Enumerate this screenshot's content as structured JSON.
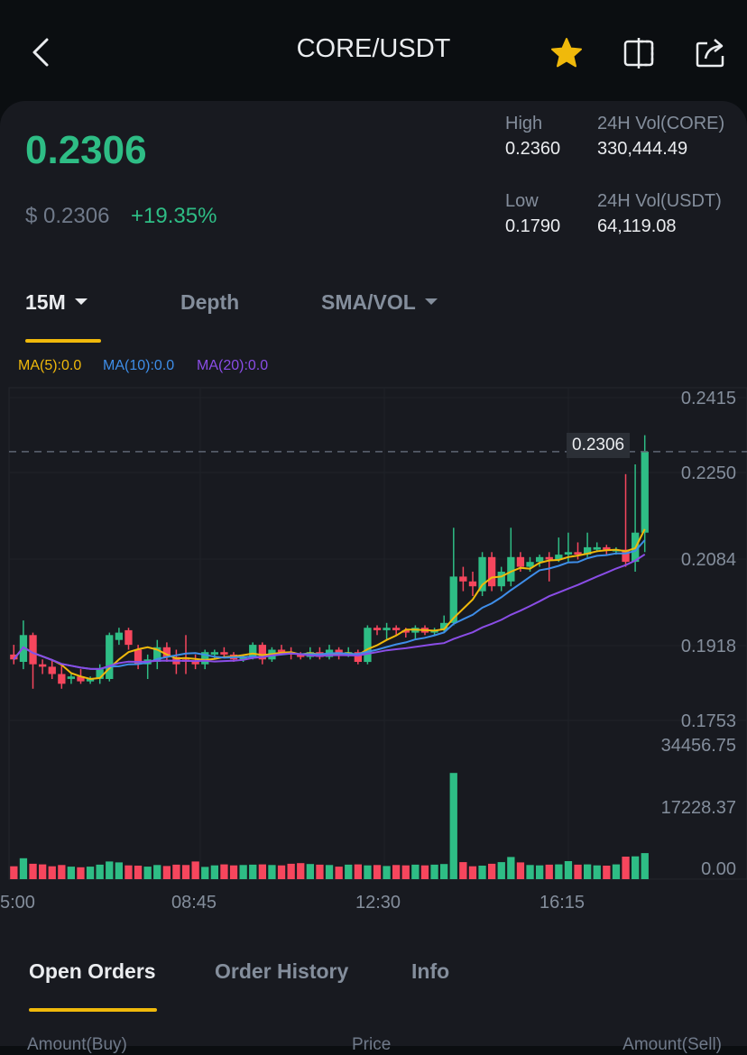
{
  "header": {
    "title": "CORE/USDT"
  },
  "ticker": {
    "last_price": "0.2306",
    "usd_price": "$ 0.2306",
    "change_pct": "+19.35%",
    "high_label": "High",
    "high_value": "0.2360",
    "low_label": "Low",
    "low_value": "0.1790",
    "vol_base_label": "24H Vol(CORE)",
    "vol_base_value": "330,444.49",
    "vol_quote_label": "24H Vol(USDT)",
    "vol_quote_value": "64,119.08"
  },
  "chart_tabs": {
    "interval": "15M",
    "depth": "Depth",
    "indicator": "SMA/VOL"
  },
  "ma_legend": {
    "ma5": "MA(5):0.0",
    "ma10": "MA(10):0.0",
    "ma20": "MA(20):0.0"
  },
  "colors": {
    "up": "#2ebd85",
    "down": "#f6465d",
    "accent": "#f0b90b",
    "ma5": "#f0b90b",
    "ma10": "#3e8ee9",
    "ma20": "#8a4de6"
  },
  "chart_data": {
    "type": "candlestick",
    "price_axis_ticks": [
      "0.2415",
      "0.2250",
      "0.2084",
      "0.1918",
      "0.1753"
    ],
    "volume_axis_ticks": [
      "34456.75",
      "17228.37",
      "0.00"
    ],
    "time_labels": [
      "5:00",
      "08:45",
      "12:30",
      "16:15"
    ],
    "last_price_marker": "0.2306",
    "ylim": [
      0.1753,
      0.2415
    ],
    "volume_ylim": [
      0,
      34456.75
    ],
    "candles": [
      {
        "o": 0.189,
        "h": 0.191,
        "l": 0.187,
        "c": 0.188
      },
      {
        "o": 0.1875,
        "h": 0.196,
        "l": 0.186,
        "c": 0.193
      },
      {
        "o": 0.193,
        "h": 0.1935,
        "l": 0.182,
        "c": 0.187
      },
      {
        "o": 0.187,
        "h": 0.188,
        "l": 0.185,
        "c": 0.1865
      },
      {
        "o": 0.1865,
        "h": 0.188,
        "l": 0.184,
        "c": 0.185
      },
      {
        "o": 0.185,
        "h": 0.187,
        "l": 0.182,
        "c": 0.183
      },
      {
        "o": 0.184,
        "h": 0.185,
        "l": 0.183,
        "c": 0.1845
      },
      {
        "o": 0.1845,
        "h": 0.186,
        "l": 0.183,
        "c": 0.1835
      },
      {
        "o": 0.1835,
        "h": 0.1845,
        "l": 0.183,
        "c": 0.184
      },
      {
        "o": 0.184,
        "h": 0.187,
        "l": 0.183,
        "c": 0.186
      },
      {
        "o": 0.184,
        "h": 0.1935,
        "l": 0.1835,
        "c": 0.193
      },
      {
        "o": 0.192,
        "h": 0.1945,
        "l": 0.191,
        "c": 0.1935
      },
      {
        "o": 0.194,
        "h": 0.1945,
        "l": 0.19,
        "c": 0.191
      },
      {
        "o": 0.19,
        "h": 0.191,
        "l": 0.186,
        "c": 0.187
      },
      {
        "o": 0.187,
        "h": 0.189,
        "l": 0.184,
        "c": 0.188
      },
      {
        "o": 0.1875,
        "h": 0.192,
        "l": 0.186,
        "c": 0.1905
      },
      {
        "o": 0.1905,
        "h": 0.1915,
        "l": 0.1875,
        "c": 0.1885
      },
      {
        "o": 0.1885,
        "h": 0.19,
        "l": 0.185,
        "c": 0.187
      },
      {
        "o": 0.188,
        "h": 0.193,
        "l": 0.185,
        "c": 0.1875
      },
      {
        "o": 0.1875,
        "h": 0.189,
        "l": 0.186,
        "c": 0.187
      },
      {
        "o": 0.187,
        "h": 0.19,
        "l": 0.186,
        "c": 0.1895
      },
      {
        "o": 0.189,
        "h": 0.19,
        "l": 0.188,
        "c": 0.1895
      },
      {
        "o": 0.1895,
        "h": 0.1905,
        "l": 0.1885,
        "c": 0.189
      },
      {
        "o": 0.189,
        "h": 0.1895,
        "l": 0.1875,
        "c": 0.188
      },
      {
        "o": 0.188,
        "h": 0.189,
        "l": 0.1875,
        "c": 0.1885
      },
      {
        "o": 0.1885,
        "h": 0.1915,
        "l": 0.188,
        "c": 0.191
      },
      {
        "o": 0.191,
        "h": 0.1915,
        "l": 0.187,
        "c": 0.188
      },
      {
        "o": 0.188,
        "h": 0.1905,
        "l": 0.1875,
        "c": 0.19
      },
      {
        "o": 0.19,
        "h": 0.191,
        "l": 0.189,
        "c": 0.1895
      },
      {
        "o": 0.1895,
        "h": 0.1905,
        "l": 0.188,
        "c": 0.189
      },
      {
        "o": 0.189,
        "h": 0.1895,
        "l": 0.188,
        "c": 0.1885
      },
      {
        "o": 0.1885,
        "h": 0.1905,
        "l": 0.188,
        "c": 0.1895
      },
      {
        "o": 0.1895,
        "h": 0.1905,
        "l": 0.188,
        "c": 0.1885
      },
      {
        "o": 0.1885,
        "h": 0.191,
        "l": 0.188,
        "c": 0.19
      },
      {
        "o": 0.19,
        "h": 0.1905,
        "l": 0.188,
        "c": 0.189
      },
      {
        "o": 0.189,
        "h": 0.1905,
        "l": 0.1885,
        "c": 0.1895
      },
      {
        "o": 0.1895,
        "h": 0.19,
        "l": 0.187,
        "c": 0.1875
      },
      {
        "o": 0.1875,
        "h": 0.195,
        "l": 0.187,
        "c": 0.1945
      },
      {
        "o": 0.1945,
        "h": 0.195,
        "l": 0.193,
        "c": 0.194
      },
      {
        "o": 0.194,
        "h": 0.1955,
        "l": 0.192,
        "c": 0.1945
      },
      {
        "o": 0.1945,
        "h": 0.195,
        "l": 0.193,
        "c": 0.194
      },
      {
        "o": 0.194,
        "h": 0.1945,
        "l": 0.1925,
        "c": 0.1935
      },
      {
        "o": 0.1935,
        "h": 0.195,
        "l": 0.192,
        "c": 0.1945
      },
      {
        "o": 0.1945,
        "h": 0.195,
        "l": 0.193,
        "c": 0.1935
      },
      {
        "o": 0.1935,
        "h": 0.1945,
        "l": 0.193,
        "c": 0.194
      },
      {
        "o": 0.194,
        "h": 0.197,
        "l": 0.1935,
        "c": 0.1955
      },
      {
        "o": 0.1955,
        "h": 0.215,
        "l": 0.195,
        "c": 0.205
      },
      {
        "o": 0.205,
        "h": 0.207,
        "l": 0.202,
        "c": 0.204
      },
      {
        "o": 0.204,
        "h": 0.206,
        "l": 0.201,
        "c": 0.203
      },
      {
        "o": 0.202,
        "h": 0.21,
        "l": 0.201,
        "c": 0.209
      },
      {
        "o": 0.209,
        "h": 0.21,
        "l": 0.202,
        "c": 0.203
      },
      {
        "o": 0.203,
        "h": 0.207,
        "l": 0.202,
        "c": 0.206
      },
      {
        "o": 0.204,
        "h": 0.215,
        "l": 0.203,
        "c": 0.209
      },
      {
        "o": 0.209,
        "h": 0.21,
        "l": 0.206,
        "c": 0.207
      },
      {
        "o": 0.207,
        "h": 0.209,
        "l": 0.206,
        "c": 0.208
      },
      {
        "o": 0.208,
        "h": 0.2095,
        "l": 0.207,
        "c": 0.209
      },
      {
        "o": 0.209,
        "h": 0.21,
        "l": 0.204,
        "c": 0.2085
      },
      {
        "o": 0.2085,
        "h": 0.213,
        "l": 0.208,
        "c": 0.2095
      },
      {
        "o": 0.2095,
        "h": 0.214,
        "l": 0.208,
        "c": 0.21
      },
      {
        "o": 0.21,
        "h": 0.212,
        "l": 0.2085,
        "c": 0.2095
      },
      {
        "o": 0.2095,
        "h": 0.214,
        "l": 0.209,
        "c": 0.211
      },
      {
        "o": 0.2105,
        "h": 0.212,
        "l": 0.21,
        "c": 0.211
      },
      {
        "o": 0.211,
        "h": 0.2115,
        "l": 0.2095,
        "c": 0.2105
      },
      {
        "o": 0.2105,
        "h": 0.211,
        "l": 0.2095,
        "c": 0.2105
      },
      {
        "o": 0.2105,
        "h": 0.226,
        "l": 0.207,
        "c": 0.208
      },
      {
        "o": 0.208,
        "h": 0.228,
        "l": 0.206,
        "c": 0.214
      },
      {
        "o": 0.214,
        "h": 0.234,
        "l": 0.21,
        "c": 0.2306
      }
    ],
    "volumes": [
      4000,
      6500,
      4800,
      4600,
      4000,
      4400,
      3900,
      3700,
      3900,
      4500,
      5500,
      5200,
      4300,
      4200,
      3900,
      4400,
      4100,
      4500,
      4400,
      5500,
      3800,
      4300,
      4600,
      4300,
      4400,
      4500,
      4600,
      4400,
      4300,
      4800,
      5000,
      4700,
      4500,
      4400,
      3900,
      4500,
      4600,
      4300,
      4400,
      4100,
      4400,
      4300,
      4500,
      4300,
      4500,
      4700,
      33000,
      5300,
      4000,
      4200,
      4800,
      5300,
      6900,
      5200,
      4400,
      4300,
      4500,
      4600,
      5600,
      4500,
      4600,
      4300,
      4200,
      4600,
      7000,
      7100,
      8100
    ]
  },
  "bottom_tabs": {
    "open_orders": "Open Orders",
    "order_history": "Order History",
    "info": "Info"
  },
  "orderbook_headers": {
    "buy": "Amount(Buy)",
    "price": "Price",
    "sell": "Amount(Sell)"
  }
}
